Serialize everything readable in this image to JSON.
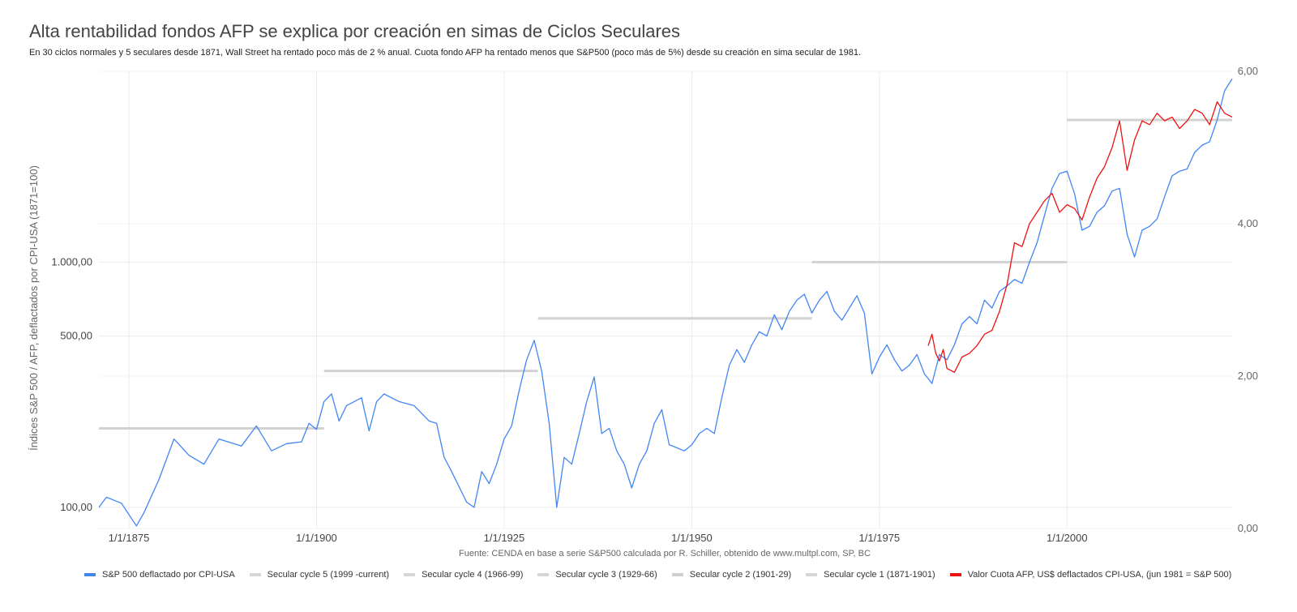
{
  "header": {
    "title": "Alta rentabilidad fondos AFP se explica por creación en simas de Ciclos Seculares",
    "subtitle": "En 30 ciclos normales y 5 seculares desde 1871, Wall Street ha rentado poco más de 2 % anual. Cuota fondo AFP ha rentado menos que S&P500 (poco más de 5%) desde su creación en sima secular de 1981."
  },
  "source": "Fuente: CENDA en base a serie S&P500 calculada por R. Schiller, obtenido de www.multpl.com, SP, BC",
  "chart_data": {
    "type": "line",
    "ylabel": "Índices S&P 500 / AFP, deflactados por CPI-USA (1871=100)",
    "x_ticks": [
      "1/1/1875",
      "1/1/1900",
      "1/1/1925",
      "1/1/1950",
      "1/1/1975",
      "1/1/2000"
    ],
    "xlim": [
      1871,
      2022
    ],
    "y_left": {
      "scale": "log",
      "range": [
        82,
        6000
      ],
      "ticks": [
        100,
        500,
        1000
      ],
      "tick_labels": [
        "100,00",
        "500,00",
        "1.000,00"
      ]
    },
    "y_right": {
      "scale": "linear",
      "range": [
        0,
        6
      ],
      "ticks": [
        0,
        2,
        4,
        6
      ],
      "tick_labels": [
        "0,00",
        "2,00",
        "4,00",
        "6,00"
      ]
    },
    "grid": true,
    "legend_position": "bottom",
    "series": [
      {
        "name": "S&P 500 deflactado por CPI-USA",
        "color": "#4285f4",
        "points": [
          [
            1871,
            100
          ],
          [
            1872,
            110
          ],
          [
            1874,
            104
          ],
          [
            1876,
            84
          ],
          [
            1877,
            95
          ],
          [
            1879,
            130
          ],
          [
            1881,
            190
          ],
          [
            1883,
            163
          ],
          [
            1885,
            150
          ],
          [
            1887,
            190
          ],
          [
            1890,
            178
          ],
          [
            1892,
            215
          ],
          [
            1894,
            170
          ],
          [
            1896,
            182
          ],
          [
            1898,
            185
          ],
          [
            1899,
            220
          ],
          [
            1900,
            208
          ],
          [
            1901,
            270
          ],
          [
            1902,
            290
          ],
          [
            1903,
            225
          ],
          [
            1904,
            260
          ],
          [
            1906,
            280
          ],
          [
            1907,
            205
          ],
          [
            1908,
            270
          ],
          [
            1909,
            290
          ],
          [
            1911,
            270
          ],
          [
            1913,
            260
          ],
          [
            1915,
            225
          ],
          [
            1916,
            220
          ],
          [
            1917,
            160
          ],
          [
            1918,
            140
          ],
          [
            1920,
            105
          ],
          [
            1921,
            100
          ],
          [
            1922,
            140
          ],
          [
            1923,
            125
          ],
          [
            1924,
            150
          ],
          [
            1925,
            190
          ],
          [
            1926,
            215
          ],
          [
            1927,
            300
          ],
          [
            1928,
            400
          ],
          [
            1929,
            480
          ],
          [
            1930,
            360
          ],
          [
            1931,
            220
          ],
          [
            1932,
            100
          ],
          [
            1933,
            160
          ],
          [
            1934,
            150
          ],
          [
            1935,
            200
          ],
          [
            1936,
            270
          ],
          [
            1937,
            340
          ],
          [
            1938,
            200
          ],
          [
            1939,
            210
          ],
          [
            1940,
            170
          ],
          [
            1941,
            150
          ],
          [
            1942,
            120
          ],
          [
            1943,
            150
          ],
          [
            1944,
            170
          ],
          [
            1945,
            220
          ],
          [
            1946,
            250
          ],
          [
            1947,
            180
          ],
          [
            1948,
            175
          ],
          [
            1949,
            170
          ],
          [
            1950,
            180
          ],
          [
            1951,
            200
          ],
          [
            1952,
            210
          ],
          [
            1953,
            200
          ],
          [
            1954,
            280
          ],
          [
            1955,
            380
          ],
          [
            1956,
            440
          ],
          [
            1957,
            390
          ],
          [
            1958,
            460
          ],
          [
            1959,
            520
          ],
          [
            1960,
            500
          ],
          [
            1961,
            610
          ],
          [
            1962,
            530
          ],
          [
            1963,
            630
          ],
          [
            1964,
            700
          ],
          [
            1965,
            740
          ],
          [
            1966,
            620
          ],
          [
            1967,
            700
          ],
          [
            1968,
            760
          ],
          [
            1969,
            630
          ],
          [
            1970,
            580
          ],
          [
            1971,
            650
          ],
          [
            1972,
            730
          ],
          [
            1973,
            620
          ],
          [
            1974,
            350
          ],
          [
            1975,
            410
          ],
          [
            1976,
            460
          ],
          [
            1977,
            400
          ],
          [
            1978,
            360
          ],
          [
            1979,
            380
          ],
          [
            1980,
            420
          ],
          [
            1981,
            350
          ],
          [
            1982,
            320
          ],
          [
            1983,
            420
          ],
          [
            1984,
            400
          ],
          [
            1985,
            460
          ],
          [
            1986,
            560
          ],
          [
            1987,
            600
          ],
          [
            1988,
            560
          ],
          [
            1989,
            700
          ],
          [
            1990,
            650
          ],
          [
            1991,
            760
          ],
          [
            1992,
            800
          ],
          [
            1993,
            850
          ],
          [
            1994,
            820
          ],
          [
            1995,
            1000
          ],
          [
            1996,
            1200
          ],
          [
            1997,
            1550
          ],
          [
            1998,
            2000
          ],
          [
            1999,
            2300
          ],
          [
            2000,
            2350
          ],
          [
            2001,
            1900
          ],
          [
            2002,
            1350
          ],
          [
            2003,
            1400
          ],
          [
            2004,
            1600
          ],
          [
            2005,
            1700
          ],
          [
            2006,
            1950
          ],
          [
            2007,
            2000
          ],
          [
            2008,
            1300
          ],
          [
            2009,
            1050
          ],
          [
            2010,
            1350
          ],
          [
            2011,
            1400
          ],
          [
            2012,
            1500
          ],
          [
            2013,
            1850
          ],
          [
            2014,
            2250
          ],
          [
            2015,
            2350
          ],
          [
            2016,
            2400
          ],
          [
            2017,
            2800
          ],
          [
            2018,
            3000
          ],
          [
            2019,
            3100
          ],
          [
            2020,
            3800
          ],
          [
            2021,
            5000
          ],
          [
            2022,
            5600
          ]
        ]
      },
      {
        "name": "Secular cycle 5 (1999 -current)",
        "color": "#cccccc",
        "segment": {
          "x": [
            2000,
            2022
          ],
          "y": 3800
        }
      },
      {
        "name": "Secular cycle 4 (1966-99)",
        "color": "#cccccc",
        "segment": {
          "x": [
            1966,
            2000
          ],
          "y": 1000
        }
      },
      {
        "name": "Secular cycle 3 (1929-66)",
        "color": "#cccccc",
        "segment": {
          "x": [
            1929.5,
            1966
          ],
          "y": 590
        }
      },
      {
        "name": "Secular cycle 2 (1901-29)",
        "color": "#cccccc",
        "segment": {
          "x": [
            1901,
            1929.5
          ],
          "y": 360
        }
      },
      {
        "name": "Secular cycle 1 (1871-1901)",
        "color": "#cccccc",
        "segment": {
          "x": [
            1871,
            1901
          ],
          "y": 210
        }
      },
      {
        "name": "Valor Cuota AFP, US$ deflactados CPI-USA, (jun 1981 = S&P 500)",
        "color": "#ee1111",
        "axis": "right",
        "points": [
          [
            1981.5,
            2.4
          ],
          [
            1982,
            2.55
          ],
          [
            1982.5,
            2.3
          ],
          [
            1983,
            2.2
          ],
          [
            1983.5,
            2.35
          ],
          [
            1984,
            2.1
          ],
          [
            1985,
            2.05
          ],
          [
            1986,
            2.25
          ],
          [
            1987,
            2.3
          ],
          [
            1988,
            2.4
          ],
          [
            1989,
            2.55
          ],
          [
            1990,
            2.6
          ],
          [
            1991,
            2.85
          ],
          [
            1992,
            3.2
          ],
          [
            1993,
            3.75
          ],
          [
            1994,
            3.7
          ],
          [
            1995,
            4.0
          ],
          [
            1996,
            4.15
          ],
          [
            1997,
            4.3
          ],
          [
            1998,
            4.4
          ],
          [
            1999,
            4.15
          ],
          [
            2000,
            4.25
          ],
          [
            2001,
            4.2
          ],
          [
            2002,
            4.05
          ],
          [
            2003,
            4.35
          ],
          [
            2004,
            4.6
          ],
          [
            2005,
            4.75
          ],
          [
            2006,
            5.0
          ],
          [
            2007,
            5.35
          ],
          [
            2008,
            4.7
          ],
          [
            2009,
            5.1
          ],
          [
            2010,
            5.35
          ],
          [
            2011,
            5.3
          ],
          [
            2012,
            5.45
          ],
          [
            2013,
            5.35
          ],
          [
            2014,
            5.4
          ],
          [
            2015,
            5.25
          ],
          [
            2016,
            5.35
          ],
          [
            2017,
            5.5
          ],
          [
            2018,
            5.45
          ],
          [
            2019,
            5.3
          ],
          [
            2020,
            5.6
          ],
          [
            2021,
            5.45
          ],
          [
            2022,
            5.4
          ]
        ]
      }
    ]
  }
}
